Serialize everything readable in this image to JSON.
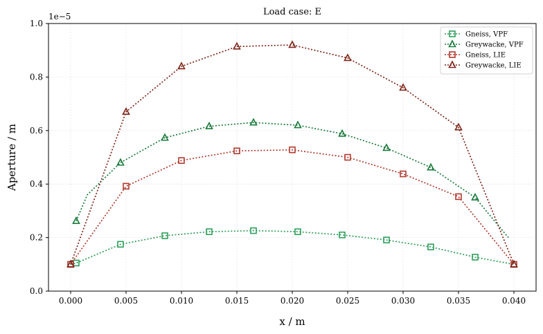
{
  "chart_data": {
    "type": "line",
    "title": "Load case: E",
    "xlabel": "x / m",
    "ylabel": "Aperture / m",
    "y_offset_label": "1e−5",
    "xlim": [
      -0.002,
      0.042
    ],
    "ylim": [
      0.0,
      1.0
    ],
    "x_ticks": [
      0.0,
      0.005,
      0.01,
      0.015,
      0.02,
      0.025,
      0.03,
      0.035,
      0.04
    ],
    "x_tick_labels": [
      "0.000",
      "0.005",
      "0.010",
      "0.015",
      "0.020",
      "0.025",
      "0.030",
      "0.035",
      "0.040"
    ],
    "y_ticks": [
      0.0,
      0.2,
      0.4,
      0.6,
      0.8,
      1.0
    ],
    "y_tick_labels": [
      "0.0",
      "0.2",
      "0.4",
      "0.6",
      "0.8",
      "1.0"
    ],
    "grid": true,
    "legend_position": "top-right",
    "series": [
      {
        "name": "Gneiss, VPF",
        "color": "#2e9e5b",
        "marker": "square",
        "x": [
          0.0,
          0.0005,
          0.0045,
          0.0085,
          0.0125,
          0.0165,
          0.0205,
          0.0245,
          0.0285,
          0.0325,
          0.0365,
          0.04
        ],
        "y": [
          0.1,
          0.105,
          0.175,
          0.207,
          0.222,
          0.226,
          0.222,
          0.21,
          0.191,
          0.165,
          0.127,
          0.1
        ],
        "marker_x": [
          0.0005,
          0.0045,
          0.0085,
          0.0125,
          0.0165,
          0.0205,
          0.0245,
          0.0285,
          0.0325,
          0.0365
        ],
        "marker_y": [
          0.105,
          0.175,
          0.207,
          0.222,
          0.226,
          0.222,
          0.21,
          0.191,
          0.165,
          0.127
        ]
      },
      {
        "name": "Greywacke, VPF",
        "color": "#1a7a3c",
        "marker": "triangle",
        "x": [
          0.0005,
          0.0015,
          0.0045,
          0.0085,
          0.0125,
          0.0165,
          0.0205,
          0.0245,
          0.0285,
          0.0325,
          0.0365,
          0.0395
        ],
        "y": [
          0.262,
          0.36,
          0.48,
          0.573,
          0.616,
          0.63,
          0.62,
          0.588,
          0.535,
          0.462,
          0.35,
          0.2
        ],
        "marker_x": [
          0.0005,
          0.0045,
          0.0085,
          0.0125,
          0.0165,
          0.0205,
          0.0245,
          0.0285,
          0.0325,
          0.0365
        ],
        "marker_y": [
          0.262,
          0.48,
          0.573,
          0.616,
          0.63,
          0.62,
          0.588,
          0.535,
          0.462,
          0.35
        ]
      },
      {
        "name": "Gneiss, LIE",
        "color": "#b03a2e",
        "marker": "square",
        "x": [
          0.0,
          0.005,
          0.01,
          0.015,
          0.02,
          0.025,
          0.03,
          0.035,
          0.04
        ],
        "y": [
          0.1,
          0.392,
          0.488,
          0.524,
          0.528,
          0.5,
          0.438,
          0.353,
          0.1
        ],
        "marker_x": [
          0.0,
          0.005,
          0.01,
          0.015,
          0.02,
          0.025,
          0.03,
          0.035,
          0.04
        ],
        "marker_y": [
          0.1,
          0.392,
          0.488,
          0.524,
          0.528,
          0.5,
          0.438,
          0.353,
          0.1
        ]
      },
      {
        "name": "Greywacke, LIE",
        "color": "#7e2418",
        "marker": "triangle",
        "x": [
          0.0,
          0.005,
          0.01,
          0.015,
          0.02,
          0.025,
          0.03,
          0.035,
          0.04
        ],
        "y": [
          0.1,
          0.67,
          0.84,
          0.914,
          0.92,
          0.871,
          0.76,
          0.612,
          0.1
        ],
        "marker_x": [
          0.0,
          0.005,
          0.01,
          0.015,
          0.02,
          0.025,
          0.03,
          0.035,
          0.04
        ],
        "marker_y": [
          0.1,
          0.67,
          0.84,
          0.914,
          0.92,
          0.871,
          0.76,
          0.612,
          0.1
        ]
      }
    ]
  }
}
